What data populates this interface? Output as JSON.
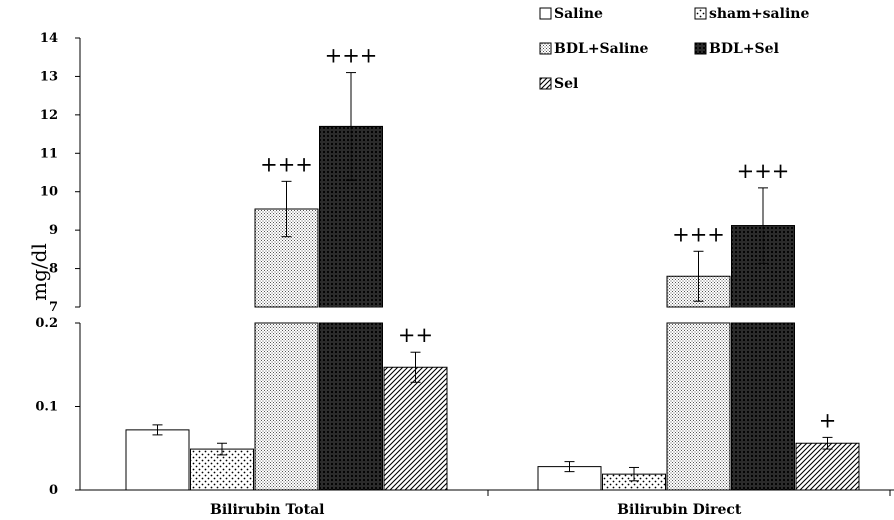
{
  "chart_data": {
    "type": "bar",
    "ylabel": "mg/dl",
    "y_axis_break": true,
    "ylim_lower": [
      0,
      0.2
    ],
    "ylim_upper": [
      7,
      14
    ],
    "yticks_lower": [
      "0",
      "0.1",
      "0.2"
    ],
    "yticks_upper": [
      "7",
      "8",
      "9",
      "10",
      "11",
      "12",
      "13",
      "14"
    ],
    "categories": [
      "Bilirubin Total",
      "Bilirubin Direct"
    ],
    "series": [
      {
        "name": "Saline",
        "pattern": "none",
        "values": [
          0.072,
          0.028
        ],
        "errors": [
          0.006,
          0.006
        ],
        "sig": [
          "",
          ""
        ]
      },
      {
        "name": "sham+saline",
        "pattern": "dots",
        "values": [
          0.049,
          0.019
        ],
        "errors": [
          0.007,
          0.008
        ],
        "sig": [
          "",
          ""
        ]
      },
      {
        "name": "BDL+Saline",
        "pattern": "fine-dots",
        "values": [
          9.55,
          7.8
        ],
        "errors": [
          0.72,
          0.65
        ],
        "sig": [
          "+++",
          "+++"
        ]
      },
      {
        "name": "BDL+Sel",
        "pattern": "crosshatch",
        "values": [
          11.7,
          9.12
        ],
        "errors": [
          1.4,
          0.98
        ],
        "sig": [
          "+++",
          "+++"
        ]
      },
      {
        "name": "Sel",
        "pattern": "diagonal",
        "values": [
          0.147,
          0.056
        ],
        "errors": [
          0.018,
          0.007
        ],
        "sig": [
          "++",
          "+"
        ]
      }
    ],
    "legend_position": "top-right",
    "grid": false
  }
}
